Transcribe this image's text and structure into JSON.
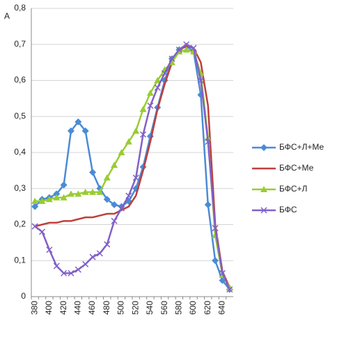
{
  "chart_data": {
    "type": "line",
    "y_label": "A",
    "categories": [
      380,
      null,
      400,
      null,
      420,
      null,
      440,
      null,
      460,
      null,
      480,
      null,
      500,
      null,
      520,
      null,
      540,
      null,
      560,
      null,
      580,
      null,
      600,
      null,
      620,
      null,
      640,
      null
    ],
    "ylim": [
      0,
      0.8
    ],
    "yticks": [
      0,
      {
        "value": 0.1,
        "label": "0,1"
      },
      {
        "value": 0.2,
        "label": "0,2"
      },
      {
        "value": 0.3,
        "label": "0,3"
      },
      {
        "value": 0.4,
        "label": "0,4"
      },
      {
        "value": 0.5,
        "label": "0,5"
      },
      {
        "value": 0.6,
        "label": "0,6"
      },
      {
        "value": 0.7,
        "label": "0,7"
      },
      {
        "value": 0.8,
        "label": "0,8"
      }
    ],
    "grid": true,
    "legend": "right",
    "series": [
      {
        "name": "БФС+Л+Ме",
        "color": "#4a8bd6",
        "marker": "diamond",
        "values": [
          0.25,
          0.27,
          0.275,
          0.285,
          0.31,
          0.46,
          0.485,
          0.46,
          0.345,
          0.3,
          0.27,
          0.255,
          0.25,
          0.265,
          0.3,
          0.36,
          0.445,
          0.525,
          0.6,
          0.66,
          0.685,
          0.695,
          0.68,
          0.56,
          0.255,
          0.1,
          0.045,
          0.02
        ]
      },
      {
        "name": "БФС+Ме",
        "color": "#be3f3c",
        "marker": "none",
        "values": [
          0.195,
          0.2,
          0.205,
          0.205,
          0.21,
          0.21,
          0.215,
          0.22,
          0.22,
          0.225,
          0.23,
          0.23,
          0.24,
          0.25,
          0.28,
          0.35,
          0.43,
          0.52,
          0.59,
          0.65,
          0.685,
          0.695,
          0.69,
          0.65,
          0.53,
          0.2,
          0.07,
          0.025
        ]
      },
      {
        "name": "БФС+Л",
        "color": "#99cc33",
        "marker": "triangle",
        "values": [
          0.265,
          0.265,
          0.27,
          0.275,
          0.275,
          0.285,
          0.285,
          0.29,
          0.29,
          0.29,
          0.33,
          0.365,
          0.4,
          0.43,
          0.46,
          0.52,
          0.565,
          0.6,
          0.63,
          0.65,
          0.68,
          0.685,
          0.68,
          0.62,
          0.44,
          0.17,
          0.06,
          0.025
        ]
      },
      {
        "name": "БФС",
        "color": "#8060c8",
        "marker": "x",
        "values": [
          0.195,
          0.18,
          0.13,
          0.085,
          0.065,
          0.065,
          0.075,
          0.09,
          0.11,
          0.12,
          0.145,
          0.21,
          0.245,
          0.28,
          0.33,
          0.45,
          0.53,
          0.58,
          0.62,
          0.66,
          0.685,
          0.7,
          0.69,
          0.6,
          0.43,
          0.19,
          0.065,
          0.02
        ]
      }
    ]
  }
}
